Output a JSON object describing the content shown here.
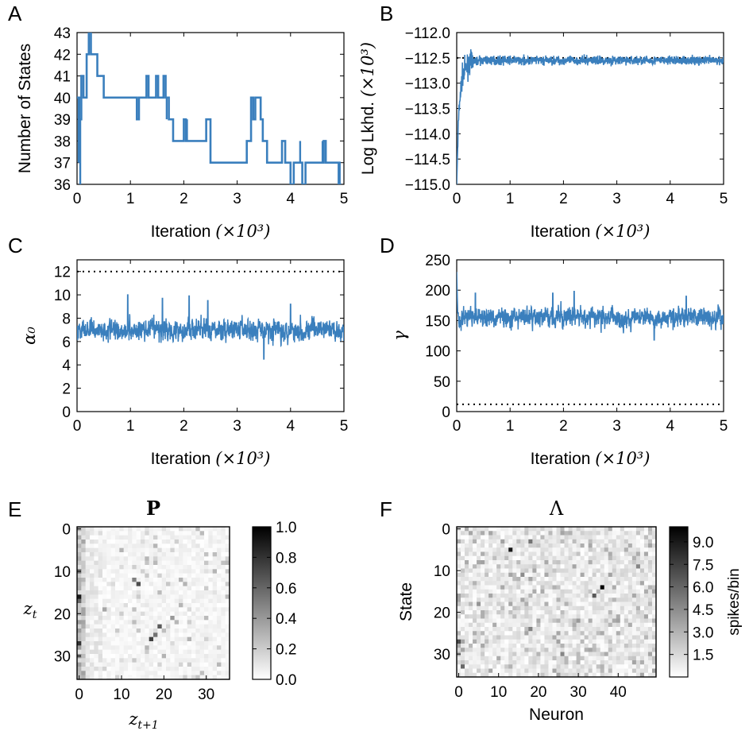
{
  "figure": {
    "panels": [
      "A",
      "B",
      "C",
      "D",
      "E",
      "F"
    ]
  },
  "chart_data": [
    {
      "panel": "A",
      "type": "line",
      "xlabel": "Iteration",
      "xlabel_unit": "(×10³)",
      "ylabel": "Number of States",
      "xlim": [
        0,
        5
      ],
      "ylim": [
        36,
        43
      ],
      "xticks": [
        0,
        1,
        2,
        3,
        4,
        5
      ],
      "yticks": [
        36,
        37,
        38,
        39,
        40,
        41,
        42,
        43
      ],
      "color": "#3a7fbd",
      "series": [
        {
          "steps": [
            [
              0.0,
              40
            ],
            [
              0.04,
              39
            ],
            [
              0.08,
              41
            ],
            [
              0.12,
              40
            ],
            [
              0.18,
              42
            ],
            [
              0.22,
              43
            ],
            [
              0.26,
              42
            ],
            [
              0.38,
              41
            ],
            [
              0.5,
              40
            ],
            [
              1.1,
              40
            ],
            [
              1.12,
              39
            ],
            [
              1.16,
              40
            ],
            [
              1.3,
              41
            ],
            [
              1.34,
              40
            ],
            [
              1.42,
              40
            ],
            [
              1.48,
              41
            ],
            [
              1.52,
              40
            ],
            [
              1.62,
              41
            ],
            [
              1.66,
              40
            ],
            [
              1.72,
              39
            ],
            [
              1.8,
              38
            ],
            [
              2.0,
              39
            ],
            [
              2.04,
              38
            ],
            [
              2.42,
              39
            ],
            [
              2.5,
              37
            ],
            [
              3.18,
              38
            ],
            [
              3.26,
              40
            ],
            [
              3.3,
              39
            ],
            [
              3.34,
              40
            ],
            [
              3.44,
              39
            ],
            [
              3.48,
              38
            ],
            [
              3.56,
              37
            ],
            [
              3.7,
              37
            ],
            [
              3.84,
              38
            ],
            [
              3.9,
              37
            ],
            [
              4.0,
              36
            ],
            [
              4.06,
              37
            ],
            [
              4.22,
              36
            ],
            [
              4.28,
              37
            ],
            [
              4.55,
              37
            ],
            [
              4.62,
              38
            ],
            [
              4.66,
              37
            ],
            [
              4.92,
              36
            ],
            [
              4.95,
              36
            ]
          ],
          "spikes": [
            [
              0.03,
              37
            ],
            [
              0.06,
              36
            ],
            [
              1.68,
              39
            ],
            [
              2.06,
              39
            ],
            [
              3.52,
              38
            ],
            [
              4.18,
              38
            ],
            [
              4.6,
              38
            ],
            [
              4.9,
              36
            ]
          ]
        }
      ]
    },
    {
      "panel": "B",
      "type": "line",
      "xlabel": "Iteration",
      "xlabel_unit": "(×10³)",
      "ylabel": "Log Lkhd.",
      "ylabel_unit": "(×10³)",
      "xlim": [
        0,
        5
      ],
      "ylim": [
        -115.0,
        -112.0
      ],
      "xticks": [
        0,
        1,
        2,
        3,
        4,
        5
      ],
      "yticks": [
        -112.0,
        -112.5,
        -113.0,
        -113.5,
        -114.0,
        -114.5,
        -115.0
      ],
      "reference_line": -112.5,
      "color": "#3a7fbd",
      "series": [
        {
          "points": [
            [
              0.0,
              -115.0
            ],
            [
              0.03,
              -113.8
            ],
            [
              0.06,
              -113.3
            ],
            [
              0.1,
              -112.9
            ],
            [
              0.15,
              -112.75
            ],
            [
              0.25,
              -112.6
            ],
            [
              0.4,
              -112.55
            ],
            [
              5.0,
              -112.55
            ]
          ],
          "noise_amplitude": 0.06
        }
      ]
    },
    {
      "panel": "C",
      "type": "line",
      "xlabel": "Iteration",
      "xlabel_unit": "(×10³)",
      "ylabel": "α₀",
      "xlim": [
        0,
        5
      ],
      "ylim": [
        0,
        13
      ],
      "xticks": [
        0,
        1,
        2,
        3,
        4,
        5
      ],
      "yticks": [
        0,
        2,
        4,
        6,
        8,
        10,
        12
      ],
      "reference_line": 12,
      "color": "#3a7fbd",
      "series": [
        {
          "mean": 7.0,
          "spread": 0.75,
          "peaks": [
            [
              0.95,
              10.0
            ],
            [
              1.6,
              9.7
            ],
            [
              2.1,
              9.9
            ],
            [
              2.45,
              9.5
            ],
            [
              4.0,
              9.2
            ],
            [
              3.5,
              4.5
            ]
          ]
        }
      ]
    },
    {
      "panel": "D",
      "type": "line",
      "xlabel": "Iteration",
      "xlabel_unit": "(×10³)",
      "ylabel": "γ",
      "xlim": [
        0,
        5
      ],
      "ylim": [
        0,
        250
      ],
      "xticks": [
        0,
        1,
        2,
        3,
        4,
        5
      ],
      "yticks": [
        0,
        50,
        100,
        150,
        200,
        250
      ],
      "reference_line": 12,
      "color": "#3a7fbd",
      "series": [
        {
          "mean": 155,
          "spread": 13,
          "start": 230,
          "peaks": [
            [
              0.35,
              195
            ],
            [
              1.8,
              195
            ],
            [
              2.2,
              198
            ],
            [
              3.7,
              118
            ],
            [
              4.3,
              190
            ]
          ]
        }
      ]
    },
    {
      "panel": "E",
      "type": "heatmap",
      "title": "P",
      "xlabel": "z_{t+1}",
      "ylabel": "z_t",
      "rows": 36,
      "cols": 36,
      "xticks": [
        0,
        10,
        20,
        30
      ],
      "yticks": [
        0,
        10,
        20,
        30
      ],
      "colorbar": {
        "min": 0.0,
        "max": 1.0,
        "ticks": [
          "0.0",
          "0.2",
          "0.4",
          "0.6",
          "0.8",
          "1.0"
        ]
      },
      "highlights": [
        [
          10,
          0,
          0.55
        ],
        [
          16,
          0,
          0.9
        ],
        [
          17,
          0,
          0.6
        ],
        [
          27,
          0,
          0.8
        ],
        [
          30,
          0,
          0.45
        ],
        [
          12,
          13,
          0.5
        ],
        [
          13,
          14,
          0.7
        ],
        [
          23,
          19,
          0.65
        ],
        [
          25,
          18,
          0.55
        ],
        [
          26,
          17,
          0.75
        ],
        [
          21,
          22,
          0.4
        ],
        [
          3,
          1,
          0.35
        ],
        [
          19,
          6,
          0.35
        ],
        [
          5,
          10,
          0.3
        ]
      ]
    },
    {
      "panel": "F",
      "type": "heatmap",
      "title": "Λ",
      "xlabel": "Neuron",
      "ylabel": "State",
      "rows": 36,
      "cols": 50,
      "xticks": [
        0,
        10,
        20,
        30,
        40
      ],
      "yticks": [
        0,
        10,
        20,
        30
      ],
      "colorbar": {
        "min": 0.0,
        "max": 10.0,
        "ticks": [
          "1.5",
          "3.0",
          "4.5",
          "6.0",
          "7.5",
          "9.0"
        ],
        "label": "spikes/bin"
      },
      "highlights": [
        [
          5,
          13,
          9.0
        ],
        [
          14,
          36,
          10.0
        ],
        [
          16,
          34,
          6.5
        ],
        [
          3,
          18,
          5.5
        ],
        [
          27,
          0,
          7.0
        ],
        [
          33,
          1,
          6.0
        ],
        [
          24,
          18,
          5.0
        ],
        [
          9,
          45,
          4.8
        ],
        [
          30,
          26,
          4.8
        ],
        [
          18,
          5,
          4.2
        ],
        [
          11,
          16,
          4.5
        ],
        [
          22,
          30,
          4.0
        ]
      ]
    }
  ]
}
